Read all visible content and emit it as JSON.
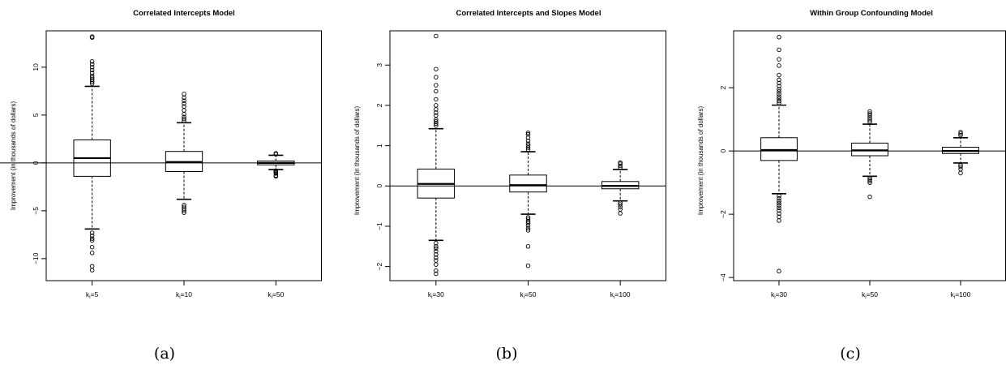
{
  "chart_data": [
    {
      "type": "box",
      "panel_label": "(a)",
      "title": "Correlated Intercepts Model",
      "ylabel": "Improvement (in thousands of dollars)",
      "ylim": [
        -12.3,
        13.8
      ],
      "yticks": [
        -10,
        -5,
        0,
        5,
        10
      ],
      "reference_line": 0,
      "categories": [
        {
          "k": "k",
          "sub": "i",
          "eq": "=5"
        },
        {
          "k": "k",
          "sub": "i",
          "eq": "=10"
        },
        {
          "k": "k",
          "sub": "i",
          "eq": "=50"
        }
      ],
      "boxes": [
        {
          "whisker_low": -6.9,
          "q1": -1.4,
          "median": 0.5,
          "q3": 2.4,
          "whisker_high": 8.0,
          "outliers": [
            8.3,
            8.5,
            8.7,
            8.9,
            9.1,
            9.4,
            9.7,
            10.0,
            10.3,
            10.6,
            13.1,
            13.2,
            -7.3,
            -7.6,
            -7.9,
            -8.1,
            -8.8,
            -9.4,
            -10.8,
            -11.2
          ]
        },
        {
          "whisker_low": -3.8,
          "q1": -0.9,
          "median": 0.1,
          "q3": 1.2,
          "whisker_high": 4.2,
          "outliers": [
            4.4,
            4.6,
            4.8,
            5.1,
            5.5,
            5.9,
            6.2,
            6.5,
            6.8,
            7.2,
            -4.4,
            -4.6,
            -4.8,
            -5.0,
            -5.2
          ]
        },
        {
          "whisker_low": -0.7,
          "q1": -0.2,
          "median": 0.0,
          "q3": 0.2,
          "whisker_high": 0.8,
          "outliers": [
            0.9,
            1.0,
            -0.8,
            -0.9,
            -1.0,
            -1.1,
            -1.3,
            -1.4
          ]
        }
      ]
    },
    {
      "type": "box",
      "panel_label": "(b)",
      "title": "Correlated Intercepts and Slopes Model",
      "ylabel": "Improvement (in thousands of dollars)",
      "ylim": [
        -2.35,
        3.85
      ],
      "yticks": [
        -2,
        -1,
        0,
        1,
        2,
        3
      ],
      "reference_line": 0,
      "categories": [
        {
          "k": "k",
          "sub": "i",
          "eq": "=30"
        },
        {
          "k": "k",
          "sub": "i",
          "eq": "=50"
        },
        {
          "k": "k",
          "sub": "i",
          "eq": "=100"
        }
      ],
      "boxes": [
        {
          "whisker_low": -1.35,
          "q1": -0.3,
          "median": 0.05,
          "q3": 0.42,
          "whisker_high": 1.42,
          "outliers": [
            1.5,
            1.55,
            1.6,
            1.65,
            1.75,
            1.82,
            1.9,
            2.0,
            2.15,
            2.35,
            2.5,
            2.7,
            2.9,
            3.72,
            -1.42,
            -1.5,
            -1.55,
            -1.62,
            -1.7,
            -1.78,
            -1.85,
            -1.95,
            -2.1,
            -2.18
          ]
        },
        {
          "whisker_low": -0.7,
          "q1": -0.15,
          "median": 0.02,
          "q3": 0.27,
          "whisker_high": 0.85,
          "outliers": [
            0.9,
            0.95,
            1.0,
            1.05,
            1.12,
            1.2,
            1.28,
            1.32,
            -0.78,
            -0.82,
            -0.88,
            -0.92,
            -0.98,
            -1.05,
            -1.1,
            -1.5,
            -1.98
          ]
        },
        {
          "whisker_low": -0.37,
          "q1": -0.07,
          "median": 0.0,
          "q3": 0.11,
          "whisker_high": 0.41,
          "outliers": [
            0.45,
            0.5,
            0.55,
            0.58,
            -0.42,
            -0.46,
            -0.52,
            -0.58,
            -0.68
          ]
        }
      ]
    },
    {
      "type": "box",
      "panel_label": "(c)",
      "title": "Within Group Confounding Model",
      "ylabel": "Improvement (in thousands of dollars)",
      "ylim": [
        -4.1,
        3.8
      ],
      "yticks": [
        -4,
        -2,
        0,
        2
      ],
      "reference_line": 0,
      "categories": [
        {
          "k": "k",
          "sub": "i",
          "eq": "=30"
        },
        {
          "k": "k",
          "sub": "i",
          "eq": "=50"
        },
        {
          "k": "k",
          "sub": "i",
          "eq": "=100"
        }
      ],
      "boxes": [
        {
          "whisker_low": -1.35,
          "q1": -0.3,
          "median": 0.03,
          "q3": 0.42,
          "whisker_high": 1.45,
          "outliers": [
            1.52,
            1.58,
            1.65,
            1.72,
            1.8,
            1.88,
            1.95,
            2.05,
            2.15,
            2.25,
            2.4,
            2.7,
            2.9,
            3.2,
            3.6,
            -1.42,
            -1.5,
            -1.58,
            -1.65,
            -1.72,
            -1.8,
            -1.88,
            -1.98,
            -2.08,
            -2.2,
            -3.8
          ]
        },
        {
          "whisker_low": -0.8,
          "q1": -0.15,
          "median": 0.02,
          "q3": 0.25,
          "whisker_high": 0.85,
          "outliers": [
            0.92,
            0.98,
            1.05,
            1.12,
            1.18,
            1.25,
            -0.85,
            -0.9,
            -0.95,
            -1.0,
            -1.45
          ]
        },
        {
          "whisker_low": -0.38,
          "q1": -0.08,
          "median": 0.0,
          "q3": 0.12,
          "whisker_high": 0.42,
          "outliers": [
            0.5,
            0.55,
            0.6,
            -0.45,
            -0.5,
            -0.58,
            -0.7
          ]
        }
      ]
    }
  ]
}
